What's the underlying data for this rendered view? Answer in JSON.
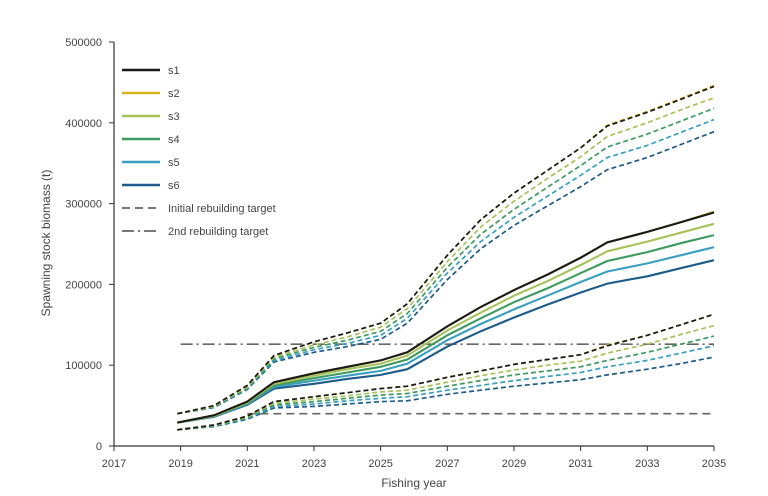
{
  "chart_data": {
    "type": "line",
    "xlabel": "Fishing year",
    "ylabel": "Spawning stock biomass (t)",
    "xlim": [
      2017,
      2035
    ],
    "ylim": [
      0,
      500000
    ],
    "x_ticks": [
      "2017",
      "2019",
      "2021",
      "2023",
      "2025",
      "2027",
      "2029",
      "2031",
      "2033",
      "2035"
    ],
    "y_ticks": [
      "0",
      "100000",
      "200000",
      "300000",
      "400000",
      "500000"
    ],
    "legend_position": "top-left",
    "grid": false,
    "x": [
      2018.9,
      2020,
      2021,
      2021.8,
      2023,
      2024,
      2025,
      2025.8,
      2027,
      2028,
      2029,
      2030,
      2031,
      2031.8,
      2033,
      2034,
      2035
    ],
    "series": [
      {
        "name": "s1",
        "color": "#1a1a1a",
        "median": [
          29000,
          38000,
          55000,
          79000,
          90000,
          98000,
          106000,
          116000,
          148000,
          172000,
          193000,
          212000,
          233000,
          252000,
          265000,
          277000,
          289000
        ],
        "upper": [
          40000,
          50000,
          75000,
          112000,
          129000,
          140000,
          152000,
          176000,
          236000,
          280000,
          313000,
          341000,
          369000,
          396000,
          413000,
          429000,
          445000
        ],
        "lower": [
          20000,
          26000,
          37000,
          55000,
          61000,
          66000,
          71000,
          74000,
          85000,
          93000,
          101000,
          107000,
          113000,
          124000,
          137000,
          150000,
          163000
        ]
      },
      {
        "name": "s2",
        "color": "#d4b520",
        "median": [
          29000,
          38000,
          55000,
          79000,
          90000,
          98000,
          106000,
          116000,
          148000,
          172000,
          193000,
          212000,
          233000,
          252000,
          265000,
          277000,
          290000
        ],
        "upper": [
          40000,
          50000,
          75000,
          112000,
          129000,
          140000,
          152000,
          176000,
          236000,
          280000,
          313000,
          341000,
          369000,
          397000,
          414000,
          430000,
          446000
        ],
        "lower": [
          20000,
          26000,
          37000,
          55000,
          61000,
          66000,
          71000,
          74000,
          85000,
          93000,
          101000,
          107000,
          113000,
          125000,
          137000,
          150000,
          163000
        ]
      },
      {
        "name": "s3",
        "color": "#a8c25a",
        "median": [
          29000,
          37500,
          54000,
          77000,
          87000,
          95000,
          102000,
          112000,
          143000,
          165000,
          186000,
          204000,
          224000,
          241000,
          253000,
          264000,
          275000
        ],
        "upper": [
          40000,
          49000,
          73000,
          110000,
          125000,
          135000,
          147000,
          170000,
          228000,
          271000,
          303000,
          331000,
          358000,
          383000,
          400000,
          416000,
          431000
        ],
        "lower": [
          20000,
          25500,
          36000,
          53000,
          58000,
          62000,
          67000,
          69000,
          79000,
          87000,
          94000,
          100000,
          105000,
          115000,
          126000,
          138000,
          149000
        ]
      },
      {
        "name": "s4",
        "color": "#3d9a5f",
        "median": [
          29000,
          37000,
          53000,
          75000,
          84000,
          91000,
          98000,
          107000,
          137000,
          158000,
          178000,
          195000,
          214000,
          229000,
          240000,
          251000,
          261000
        ],
        "upper": [
          40000,
          48500,
          72000,
          108000,
          122000,
          131000,
          142000,
          164000,
          221000,
          262000,
          293000,
          320000,
          347000,
          370000,
          386000,
          402000,
          418000
        ],
        "lower": [
          20000,
          25000,
          35000,
          51000,
          55000,
          59000,
          63000,
          65000,
          74000,
          81000,
          88000,
          93000,
          98000,
          106000,
          116000,
          126000,
          136000
        ]
      },
      {
        "name": "s5",
        "color": "#3a9fc0",
        "median": [
          29000,
          36500,
          52000,
          73000,
          81000,
          87000,
          93000,
          102000,
          131000,
          151000,
          169000,
          186000,
          203000,
          216000,
          226000,
          236000,
          246000
        ],
        "upper": [
          40000,
          48000,
          71000,
          106000,
          119000,
          127000,
          137000,
          158000,
          214000,
          253000,
          283000,
          309000,
          335000,
          357000,
          372000,
          388000,
          404000
        ],
        "lower": [
          20000,
          24500,
          34000,
          49000,
          52000,
          56000,
          59000,
          61000,
          69000,
          75000,
          81000,
          86000,
          91000,
          98000,
          106000,
          115000,
          124000
        ]
      },
      {
        "name": "s6",
        "color": "#1d5c8a",
        "median": [
          29000,
          36000,
          51000,
          71000,
          77000,
          83000,
          88000,
          95000,
          123000,
          142000,
          159000,
          175000,
          190000,
          201000,
          210000,
          220000,
          230000
        ],
        "upper": [
          40000,
          47500,
          70000,
          104000,
          116000,
          123000,
          132000,
          152000,
          206000,
          244000,
          273000,
          297000,
          321000,
          342000,
          357000,
          373000,
          389000
        ],
        "lower": [
          20000,
          24000,
          33000,
          47000,
          49000,
          52000,
          55000,
          56000,
          64000,
          69000,
          74000,
          78000,
          82000,
          88000,
          95000,
          102000,
          110000
        ]
      }
    ],
    "reference_lines": [
      {
        "name": "Initial rebuilding target",
        "style": "dashed",
        "color": "#666666",
        "y": 40000,
        "x_range": [
          2021,
          2035
        ]
      },
      {
        "name": "2nd rebuilding target",
        "style": "dashdot",
        "color": "#666666",
        "y": 126000,
        "x_range": [
          2019,
          2035
        ]
      }
    ]
  }
}
